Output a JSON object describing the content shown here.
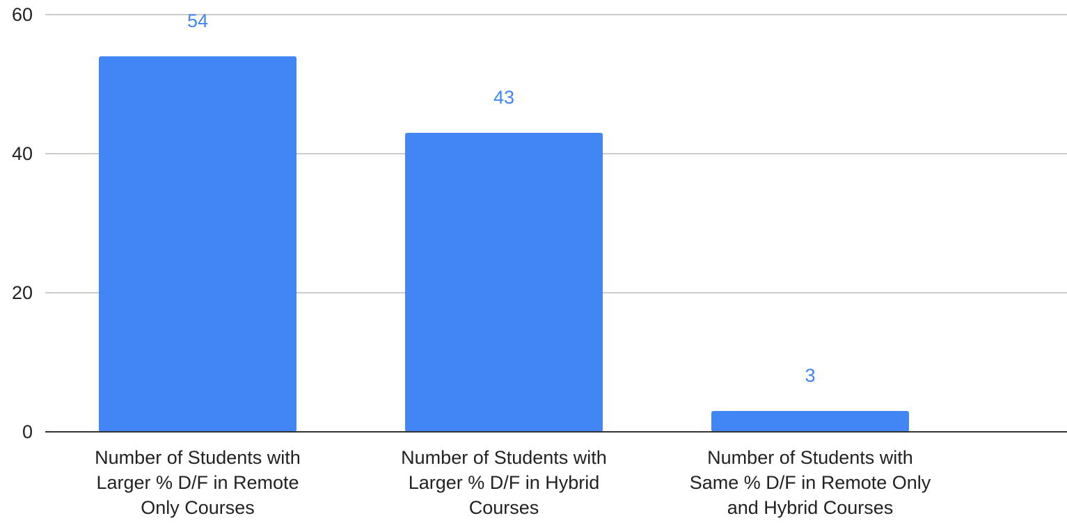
{
  "chart_data": {
    "type": "bar",
    "title": "",
    "xlabel": "",
    "ylabel": "",
    "categories": [
      [
        "Number of Students with",
        "Larger % D/F in Remote",
        "Only Courses"
      ],
      [
        "Number of Students with",
        "Larger % D/F in Hybrid",
        "Courses"
      ],
      [
        "Number of Students with",
        "Same % D/F in Remote Only",
        "and Hybrid Courses"
      ]
    ],
    "values": [
      54,
      43,
      3
    ],
    "data_labels": [
      "54",
      "43",
      "3"
    ],
    "ylim": [
      0,
      60
    ],
    "yticks": [
      0,
      20,
      40,
      60
    ],
    "ytick_labels": [
      "0",
      "20",
      "40",
      "60"
    ],
    "grid": true,
    "legend": "none",
    "colors": {
      "bar": "#4285f4",
      "data_label": "#4285f4",
      "grid": "#cccccc",
      "axis": "#333333",
      "tick_text": "#222222"
    }
  }
}
